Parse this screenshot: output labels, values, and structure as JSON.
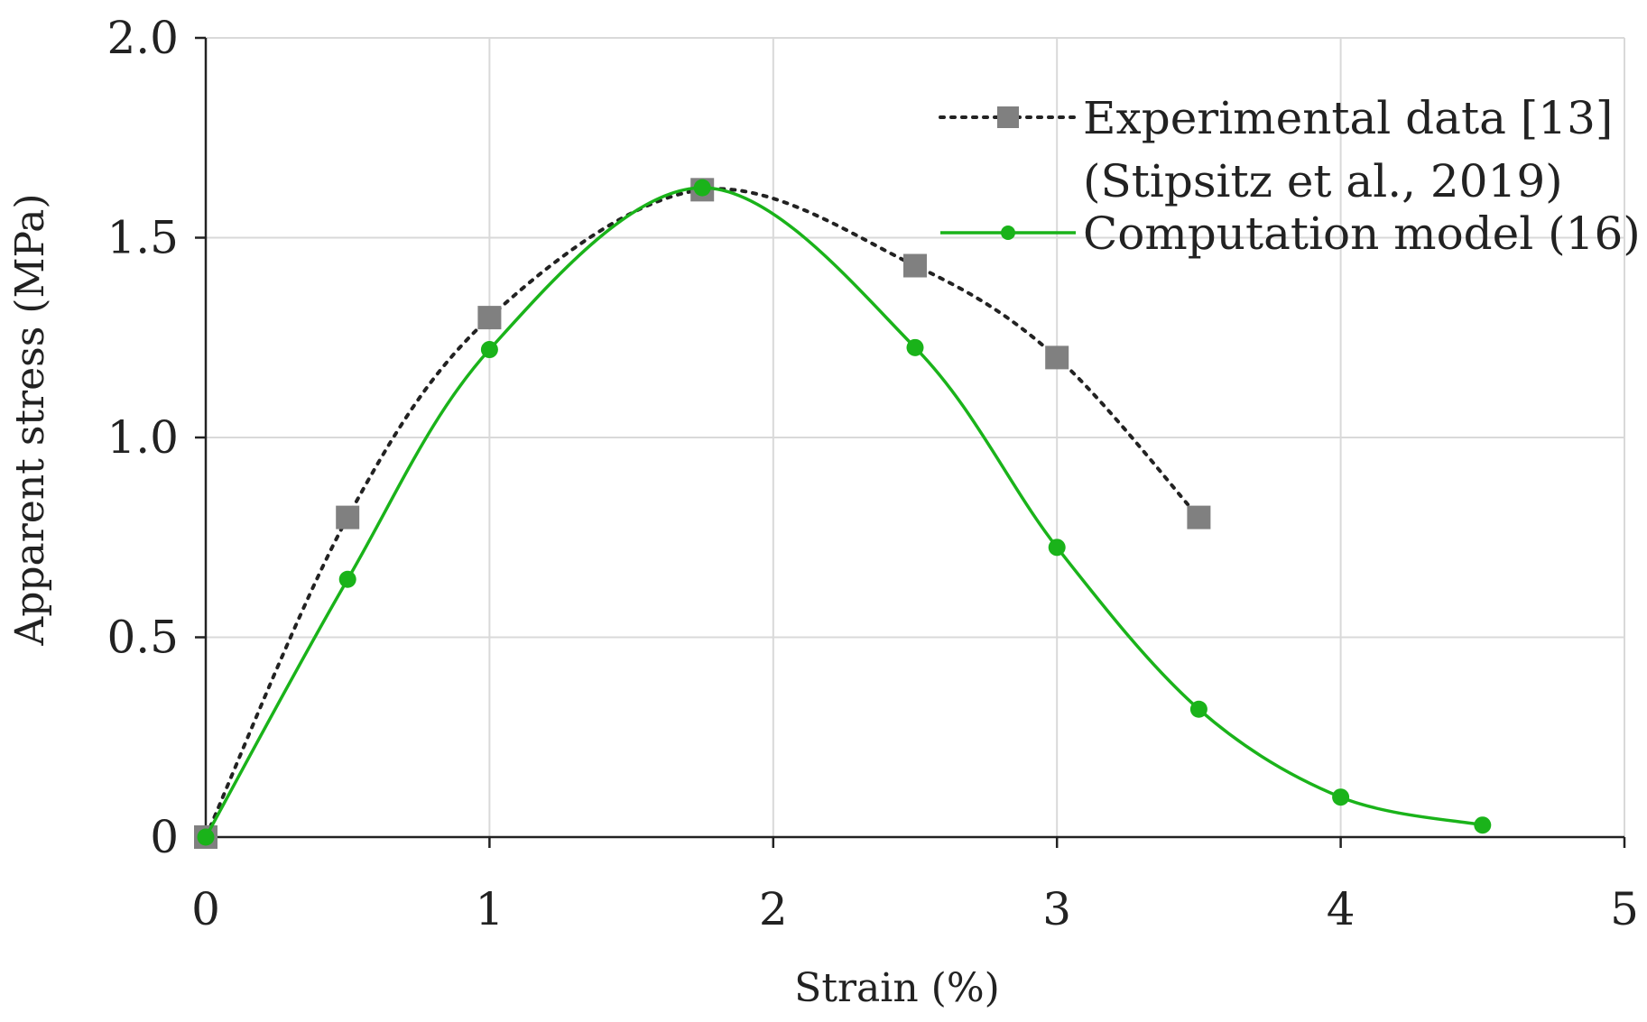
{
  "chart_data": {
    "type": "line",
    "title": "",
    "xlabel": "Strain (%)",
    "ylabel": "Apparent stress (MPa)",
    "xlim": [
      0,
      5
    ],
    "ylim": [
      0,
      2.0
    ],
    "x_ticks": [
      0,
      1,
      2,
      3,
      4,
      5
    ],
    "x_tick_labels": [
      "0",
      "1",
      "2",
      "3",
      "4",
      "5"
    ],
    "y_ticks": [
      0,
      0.5,
      1.0,
      1.5,
      2.0
    ],
    "y_tick_labels": [
      "0",
      "0.5",
      "1.0",
      "1.5",
      "2.0"
    ],
    "grid": true,
    "legend_position": "top-right",
    "series": [
      {
        "name": "Experimental data [13] (Stipsitz et al., 2019)",
        "legend_lines": [
          "Experimental data [13]",
          "(Stipsitz et al., 2019)"
        ],
        "marker": "square",
        "line_style": "dotted",
        "color": "#222222",
        "marker_color": "#808080",
        "x": [
          0,
          0.5,
          1.0,
          1.75,
          2.5,
          3.0,
          3.5
        ],
        "y": [
          0,
          0.8,
          1.3,
          1.62,
          1.43,
          1.2,
          0.8
        ]
      },
      {
        "name": "Computation model (16)",
        "legend_lines": [
          "Computation model (16)"
        ],
        "marker": "circle",
        "line_style": "solid",
        "color": "#1ab31a",
        "marker_color": "#1ab31a",
        "x": [
          0,
          0.5,
          1.0,
          1.75,
          2.5,
          3.0,
          3.5,
          4.0,
          4.5
        ],
        "y": [
          0,
          0.645,
          1.22,
          1.625,
          1.225,
          0.725,
          0.32,
          0.1,
          0.03
        ]
      }
    ]
  }
}
